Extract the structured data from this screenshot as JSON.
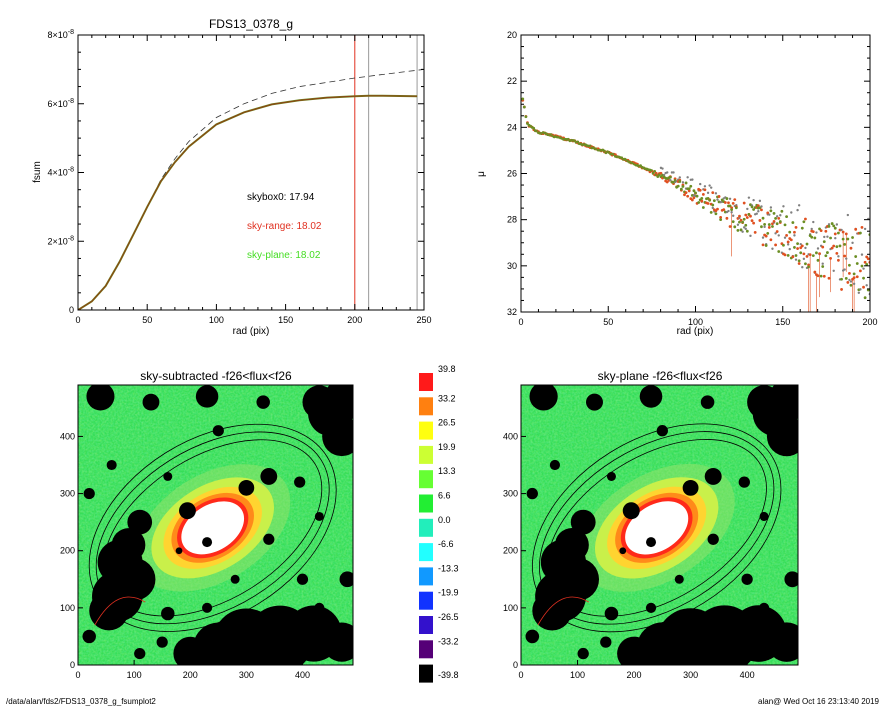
{
  "footer": {
    "path": "/data/alan/fds2/FDS13_0378_g_fsumplot2",
    "user_date": "alan@  Wed Oct 16 23:13:40 2019"
  },
  "chart_data": [
    {
      "type": "line",
      "title": "FDS13_0378_g",
      "xlabel": "rad (pix)",
      "ylabel": "fsum",
      "xlim": [
        0,
        250
      ],
      "ylim": [
        0,
        8e-08
      ],
      "x_ticks": [
        "0",
        "50",
        "100",
        "150",
        "200",
        "250"
      ],
      "y_ticks": [
        {
          "mant": "0",
          "exp": ""
        },
        {
          "mant": "2×10",
          "exp": "-8"
        },
        {
          "mant": "4×10",
          "exp": "-8"
        },
        {
          "mant": "6×10",
          "exp": "-8"
        },
        {
          "mant": "8×10",
          "exp": "-8"
        }
      ],
      "colors": {
        "solid": "#8b4513",
        "green": "#6b8e23",
        "red_line": "#e03020",
        "gray_line": "#999999"
      },
      "series": [
        {
          "style": "dashed",
          "x": [
            0,
            10,
            20,
            30,
            40,
            50,
            60,
            70,
            80,
            100,
            120,
            140,
            160,
            180,
            200,
            220,
            250
          ],
          "y": [
            0,
            0.25,
            0.7,
            1.4,
            2.2,
            3.0,
            3.8,
            4.4,
            4.9,
            5.6,
            6.0,
            6.3,
            6.5,
            6.62,
            6.75,
            6.85,
            7.0
          ]
        },
        {
          "style": "solid",
          "x": [
            0,
            10,
            20,
            30,
            40,
            50,
            60,
            70,
            80,
            100,
            120,
            140,
            160,
            180,
            200,
            210,
            220,
            245
          ],
          "y": [
            0,
            0.25,
            0.7,
            1.4,
            2.2,
            3.0,
            3.75,
            4.3,
            4.75,
            5.4,
            5.75,
            5.98,
            6.1,
            6.18,
            6.22,
            6.23,
            6.23,
            6.22
          ]
        }
      ],
      "vlines": [
        {
          "x": 200,
          "color": "red"
        },
        {
          "x": 210,
          "color": "gray"
        },
        {
          "x": 245,
          "color": "gray"
        }
      ],
      "annotations": [
        {
          "text": "skybox0: 17.94",
          "color": "#000000"
        },
        {
          "text": "sky-range: 18.02",
          "color": "#e03020"
        },
        {
          "text": "sky-plane: 18.02",
          "color": "#44dd22"
        }
      ]
    },
    {
      "type": "scatter",
      "xlabel": "rad (pix)",
      "ylabel": "μ",
      "xlim": [
        0,
        200
      ],
      "ylim": [
        32,
        20
      ],
      "x_ticks": [
        "0",
        "50",
        "100",
        "150",
        "200"
      ],
      "y_ticks": [
        "20",
        "22",
        "24",
        "26",
        "28",
        "30",
        "32"
      ],
      "points": {
        "x": [
          1,
          2,
          3,
          4,
          6,
          8,
          10,
          15,
          20,
          30,
          40,
          50,
          60,
          70,
          80,
          90,
          100,
          110,
          120,
          130,
          140,
          150,
          160,
          170,
          180,
          190,
          200
        ],
        "y": [
          22.8,
          23.2,
          23.6,
          23.9,
          24.0,
          24.1,
          24.2,
          24.3,
          24.4,
          24.6,
          24.85,
          25.1,
          25.4,
          25.75,
          26.1,
          26.5,
          26.9,
          27.3,
          27.7,
          28.0,
          28.3,
          28.6,
          28.9,
          29.2,
          29.5,
          29.8,
          30.1
        ]
      },
      "colors": {
        "sky_plane": "#6b8e23",
        "sky_range": "#e05020",
        "skybox0": "#808080"
      }
    },
    {
      "type": "heatmap",
      "title": "sky-subtracted -f26<flux<f26",
      "xlim": [
        0,
        490
      ],
      "ylim": [
        0,
        490
      ],
      "x_ticks": [
        "0",
        "100",
        "200",
        "300",
        "400"
      ],
      "y_ticks": [
        "0",
        "100",
        "200",
        "300",
        "400"
      ]
    },
    {
      "type": "heatmap",
      "title": "sky-plane -f26<flux<f26",
      "xlim": [
        0,
        490
      ],
      "ylim": [
        0,
        490
      ],
      "x_ticks": [
        "0",
        "100",
        "200",
        "300",
        "400"
      ],
      "y_ticks": [
        "0",
        "100",
        "200",
        "300",
        "400"
      ]
    }
  ],
  "colorbar": {
    "labels": [
      "39.8",
      "33.2",
      "26.5",
      "19.9",
      "13.3",
      "6.6",
      "0.0",
      "-6.6",
      "-13.3",
      "-19.9",
      "-26.5",
      "-33.2",
      "-39.8"
    ],
    "colors": [
      "#ff1a1a",
      "#ff8010",
      "#ffff10",
      "#ccff33",
      "#66ff33",
      "#22ee33",
      "#22eebb",
      "#22ffff",
      "#1199ff",
      "#1133ff",
      "#3311cc",
      "#550077",
      "#000000"
    ]
  }
}
